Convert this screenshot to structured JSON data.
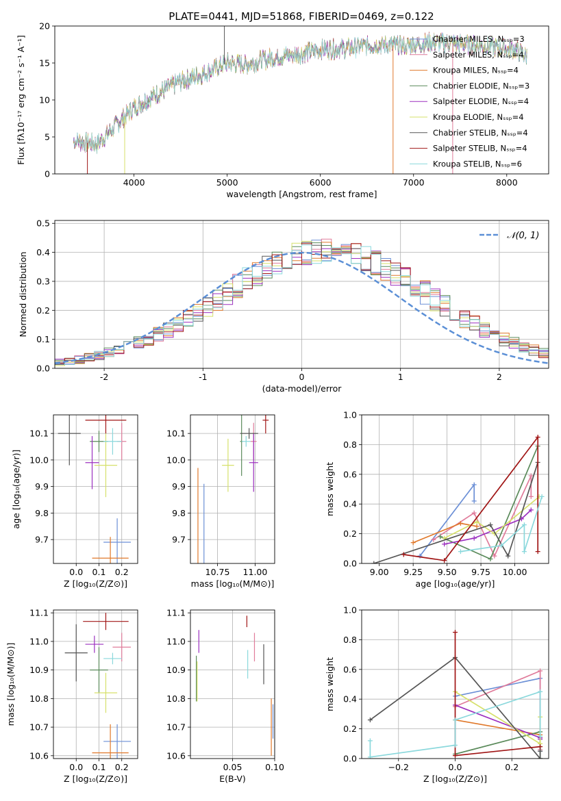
{
  "figure_title": "PLATE=0441, MJD=51868, FIBERID=0469, z=0.122",
  "colors": {
    "chabrier_miles": "#6b8fd6",
    "salpeter_miles": "#e07b9a",
    "kroupa_miles": "#e0782a",
    "chabrier_elodie": "#5a8a5a",
    "salpeter_elodie": "#9b2fbf",
    "kroupa_elodie": "#d6e06a",
    "chabrier_stelib": "#555555",
    "salpeter_stelib": "#a01515",
    "kroupa_stelib": "#8ad8dc",
    "normal_curve": "#5b8fd6"
  },
  "chart_data": [
    {
      "type": "line",
      "id": "spectrum",
      "xlabel": "wavelength [Angstrom, rest frame]",
      "ylabel": "Flux [fλ10⁻¹⁷ erg cm⁻² s⁻¹ A⁻¹]",
      "xlim": [
        3150,
        8450
      ],
      "ylim": [
        0,
        20
      ],
      "xticks": [
        4000,
        5000,
        6000,
        7000,
        8000
      ],
      "yticks": [
        0,
        5,
        10,
        15,
        20
      ],
      "grid": false,
      "legend_position": "top-right",
      "legend": [
        {
          "label": "Chabrier MILES, N_SSP=3",
          "color_key": "chabrier_miles"
        },
        {
          "label": "Salpeter MILES, N_SSP=4",
          "color_key": "salpeter_miles"
        },
        {
          "label": "Kroupa MILES, N_SSP=4",
          "color_key": "kroupa_miles"
        },
        {
          "label": "Chabrier ELODIE, N_SSP=3",
          "color_key": "chabrier_elodie"
        },
        {
          "label": "Salpeter ELODIE, N_SSP=4",
          "color_key": "salpeter_elodie"
        },
        {
          "label": "Kroupa ELODIE, N_SSP=4",
          "color_key": "kroupa_elodie"
        },
        {
          "label": "Chabrier STELIB, N_SSP=4",
          "color_key": "chabrier_stelib"
        },
        {
          "label": "Salpeter STELIB, N_SSP=4",
          "color_key": "salpeter_stelib"
        },
        {
          "label": "Kroupa STELIB, N_SSP=6",
          "color_key": "kroupa_stelib"
        }
      ],
      "continuum": {
        "x": [
          3350,
          3600,
          3800,
          4000,
          4200,
          4500,
          4800,
          5000,
          5200,
          5500,
          5800,
          6000,
          6300,
          6600,
          6900,
          7200,
          7500,
          7800,
          8100,
          8200
        ],
        "y": [
          4.5,
          4.0,
          6.5,
          9.0,
          10.5,
          12.5,
          13.8,
          15.0,
          14.8,
          15.8,
          16.3,
          16.8,
          17.0,
          17.5,
          17.3,
          17.8,
          17.6,
          17.3,
          16.8,
          16.0
        ]
      },
      "data_x_range": [
        3350,
        8220
      ],
      "spikes": [
        {
          "x": 4970,
          "y": 20,
          "series": "chabrier_stelib"
        },
        {
          "x": 7420,
          "y": 0,
          "series": "salpeter_miles"
        },
        {
          "x": 6780,
          "y": 0,
          "series": "kroupa_miles"
        },
        {
          "x": 3900,
          "y": 0,
          "series": "kroupa_elodie"
        },
        {
          "x": 3500,
          "y": 0,
          "series": "salpeter_stelib"
        }
      ]
    },
    {
      "type": "histogram",
      "id": "residuals",
      "xlabel": "(data-model)/error",
      "ylabel": "Normed distribution",
      "xlim": [
        -2.5,
        2.5
      ],
      "ylim": [
        0,
        0.51
      ],
      "xticks": [
        -2,
        -1,
        0,
        1,
        2
      ],
      "yticks": [
        0.0,
        0.1,
        0.2,
        0.3,
        0.4,
        0.5
      ],
      "grid": true,
      "legend_position": "top-right",
      "legend": [
        {
          "label": "𝒩(0, 1)",
          "color_key": "normal_curve"
        }
      ],
      "bin_width": 0.1,
      "bin_start": -2.5,
      "mean_density": [
        0.022,
        0.025,
        0.03,
        0.038,
        0.045,
        0.054,
        0.063,
        0.075,
        0.088,
        0.1,
        0.116,
        0.133,
        0.152,
        0.172,
        0.194,
        0.216,
        0.238,
        0.261,
        0.284,
        0.306,
        0.326,
        0.345,
        0.362,
        0.378,
        0.39,
        0.398,
        0.402,
        0.404,
        0.402,
        0.398,
        0.39,
        0.378,
        0.362,
        0.345,
        0.326,
        0.306,
        0.284,
        0.261,
        0.238,
        0.216,
        0.194,
        0.172,
        0.152,
        0.133,
        0.116,
        0.1,
        0.088,
        0.075,
        0.063,
        0.054
      ]
    },
    {
      "type": "scatter",
      "id": "z-vs-age",
      "xlabel": "Z [log₁₀(Z/Z⊙)]",
      "ylabel": "age  [log₁₀(age/yr)]",
      "xlim": [
        -0.1,
        0.27
      ],
      "ylim": [
        9.61,
        10.17
      ],
      "xticks": [
        0.0,
        0.1,
        0.2
      ],
      "xtick_labels": [
        "0.0",
        "0.1",
        "0.2"
      ],
      "yticks": [
        9.7,
        9.8,
        9.9,
        10.0,
        10.1
      ],
      "grid": true,
      "points": [
        {
          "s": "chabrier_miles",
          "x": 0.18,
          "y": 9.69,
          "xerr": 0.06,
          "yerr": 0.09
        },
        {
          "s": "salpeter_miles",
          "x": 0.2,
          "y": 10.07,
          "xerr": 0.02,
          "yerr": 0.07
        },
        {
          "s": "kroupa_miles",
          "x": 0.15,
          "y": 9.63,
          "xerr": 0.08,
          "yerr": 0.08
        },
        {
          "s": "chabrier_elodie",
          "x": 0.1,
          "y": 10.07,
          "xerr": 0.04,
          "yerr": 0.04
        },
        {
          "s": "salpeter_elodie",
          "x": 0.07,
          "y": 9.99,
          "xerr": 0.03,
          "yerr": 0.1
        },
        {
          "s": "kroupa_elodie",
          "x": 0.13,
          "y": 9.98,
          "xerr": 0.05,
          "yerr": 0.12
        },
        {
          "s": "chabrier_stelib",
          "x": -0.03,
          "y": 10.1,
          "xerr": 0.05,
          "yerr": 0.12
        },
        {
          "s": "salpeter_stelib",
          "x": 0.13,
          "y": 10.15,
          "xerr": 0.09,
          "yerr": 0.05
        },
        {
          "s": "kroupa_stelib",
          "x": 0.16,
          "y": 10.07,
          "xerr": 0.04,
          "yerr": 0.05
        }
      ]
    },
    {
      "type": "scatter",
      "id": "mass-vs-age",
      "xlabel": "mass [log₁₀(M/M⊙)]",
      "ylabel": "",
      "xlim": [
        10.57,
        11.13
      ],
      "ylim": [
        9.61,
        10.17
      ],
      "xticks": [
        10.75,
        11.0
      ],
      "xtick_labels": [
        "10.75",
        "11.00"
      ],
      "yticks": [
        9.7,
        9.8,
        9.9,
        10.0,
        10.1
      ],
      "grid": true,
      "points": [
        {
          "s": "chabrier_miles",
          "x": 10.66,
          "y": 9.69,
          "xerr": 0.0,
          "yerr": 0.22
        },
        {
          "s": "salpeter_miles",
          "x": 10.99,
          "y": 10.07,
          "xerr": 0.02,
          "yerr": 0.07
        },
        {
          "s": "kroupa_miles",
          "x": 10.62,
          "y": 9.63,
          "xerr": 0.0,
          "yerr": 0.34
        },
        {
          "s": "chabrier_elodie",
          "x": 10.91,
          "y": 10.07,
          "xerr": 0.01,
          "yerr": 0.13
        },
        {
          "s": "salpeter_elodie",
          "x": 10.99,
          "y": 9.99,
          "xerr": 0.03,
          "yerr": 0.11
        },
        {
          "s": "kroupa_elodie",
          "x": 10.82,
          "y": 9.98,
          "xerr": 0.04,
          "yerr": 0.1
        },
        {
          "s": "chabrier_stelib",
          "x": 10.96,
          "y": 10.1,
          "xerr": 0.06,
          "yerr": 0.02
        },
        {
          "s": "salpeter_stelib",
          "x": 11.07,
          "y": 10.15,
          "xerr": 0.02,
          "yerr": 0.05
        },
        {
          "s": "kroupa_stelib",
          "x": 10.94,
          "y": 10.07,
          "xerr": 0.03,
          "yerr": 0.02
        }
      ]
    },
    {
      "type": "line",
      "id": "age-vs-weight",
      "xlabel": "age  [log₁₀(age/yr)]",
      "ylabel": "mass weight",
      "xlim": [
        8.87,
        10.25
      ],
      "ylim": [
        0,
        1.0
      ],
      "xticks": [
        9.0,
        9.25,
        9.5,
        9.75,
        10.0
      ],
      "xtick_labels": [
        "9.00",
        "9.25",
        "9.50",
        "9.75",
        "10.00"
      ],
      "yticks": [
        0.0,
        0.2,
        0.4,
        0.6,
        0.8,
        1.0
      ],
      "grid": true,
      "series": [
        {
          "s": "chabrier_miles",
          "x": [
            9.3,
            9.7,
            9.7
          ],
          "y": [
            0.05,
            0.53,
            0.42
          ]
        },
        {
          "s": "salpeter_miles",
          "x": [
            9.4,
            9.7,
            9.85,
            10.12,
            10.12
          ],
          "y": [
            0.16,
            0.34,
            0.05,
            0.59,
            0.45
          ]
        },
        {
          "s": "kroupa_miles",
          "x": [
            9.25,
            9.6,
            9.72
          ],
          "y": [
            0.14,
            0.27,
            0.25
          ]
        },
        {
          "s": "chabrier_elodie",
          "x": [
            9.45,
            9.82,
            10.17
          ],
          "y": [
            0.18,
            0.03,
            0.79
          ]
        },
        {
          "s": "salpeter_elodie",
          "x": [
            9.48,
            9.7,
            10.05,
            10.12
          ],
          "y": [
            0.13,
            0.17,
            0.3,
            0.36
          ]
        },
        {
          "s": "kroupa_elodie",
          "x": [
            9.48,
            9.72,
            9.85,
            10.18
          ],
          "y": [
            0.17,
            0.28,
            0.2,
            0.45
          ]
        },
        {
          "s": "chabrier_stelib",
          "x": [
            8.96,
            9.82,
            9.95,
            10.17
          ],
          "y": [
            0.0,
            0.26,
            0.05,
            0.68
          ]
        },
        {
          "s": "salpeter_stelib",
          "x": [
            9.18,
            9.48,
            10.17,
            10.17
          ],
          "y": [
            0.06,
            0.02,
            0.85,
            0.08
          ]
        },
        {
          "s": "kroupa_stelib",
          "x": [
            9.6,
            9.9,
            10.07,
            10.07,
            10.2
          ],
          "y": [
            0.08,
            0.12,
            0.26,
            0.08,
            0.45
          ]
        }
      ]
    },
    {
      "type": "scatter",
      "id": "z-vs-mass",
      "xlabel": "Z [log₁₀(Z/Z⊙)]",
      "ylabel": "mass [log₁₀(M/M⊙)]",
      "xlim": [
        -0.1,
        0.27
      ],
      "ylim": [
        10.59,
        11.11
      ],
      "xticks": [
        0.0,
        0.1,
        0.2
      ],
      "xtick_labels": [
        "0.0",
        "0.1",
        "0.2"
      ],
      "yticks": [
        10.6,
        10.7,
        10.8,
        10.9,
        11.0,
        11.1
      ],
      "grid": true,
      "points": [
        {
          "s": "chabrier_miles",
          "x": 0.18,
          "y": 10.65,
          "xerr": 0.06,
          "yerr": 0.06
        },
        {
          "s": "salpeter_miles",
          "x": 0.2,
          "y": 10.98,
          "xerr": 0.04,
          "yerr": 0.05
        },
        {
          "s": "kroupa_miles",
          "x": 0.15,
          "y": 10.61,
          "xerr": 0.08,
          "yerr": 0.1
        },
        {
          "s": "chabrier_elodie",
          "x": 0.1,
          "y": 10.9,
          "xerr": 0.04,
          "yerr": 0.08
        },
        {
          "s": "salpeter_elodie",
          "x": 0.08,
          "y": 10.99,
          "xerr": 0.04,
          "yerr": 0.03
        },
        {
          "s": "kroupa_elodie",
          "x": 0.13,
          "y": 10.82,
          "xerr": 0.05,
          "yerr": 0.07
        },
        {
          "s": "chabrier_stelib",
          "x": 0.0,
          "y": 10.96,
          "xerr": 0.05,
          "yerr": 0.1
        },
        {
          "s": "salpeter_stelib",
          "x": 0.13,
          "y": 11.07,
          "xerr": 0.1,
          "yerr": 0.03
        },
        {
          "s": "kroupa_stelib",
          "x": 0.16,
          "y": 10.94,
          "xerr": 0.04,
          "yerr": 0.02
        }
      ]
    },
    {
      "type": "scatter",
      "id": "ebv-vs-mass",
      "xlabel": "E(B-V)",
      "ylabel": "",
      "xlim": [
        0.0,
        0.1
      ],
      "ylim": [
        10.59,
        11.11
      ],
      "xticks": [
        0.05,
        0.1
      ],
      "xtick_labels": [
        "0.05",
        "0.10"
      ],
      "yticks": [
        10.6,
        10.7,
        10.8,
        10.9,
        11.0,
        11.1
      ],
      "grid": true,
      "points": [
        {
          "s": "chabrier_miles",
          "x": 0.098,
          "y": 10.72,
          "xerr": 0,
          "yerr": 0.06
        },
        {
          "s": "salpeter_miles",
          "x": 0.076,
          "y": 10.98,
          "xerr": 0,
          "yerr": 0.05
        },
        {
          "s": "kroupa_miles",
          "x": 0.096,
          "y": 10.7,
          "xerr": 0,
          "yerr": 0.1
        },
        {
          "s": "chabrier_elodie",
          "x": 0.007,
          "y": 10.87,
          "xerr": 0,
          "yerr": 0.08
        },
        {
          "s": "salpeter_elodie",
          "x": 0.01,
          "y": 11.0,
          "xerr": 0,
          "yerr": 0.04
        },
        {
          "s": "kroupa_elodie",
          "x": 0.008,
          "y": 10.86,
          "xerr": 0,
          "yerr": 0.07
        },
        {
          "s": "chabrier_stelib",
          "x": 0.087,
          "y": 10.92,
          "xerr": 0,
          "yerr": 0.07
        },
        {
          "s": "salpeter_stelib",
          "x": 0.067,
          "y": 11.07,
          "xerr": 0,
          "yerr": 0.02
        },
        {
          "s": "kroupa_stelib",
          "x": 0.068,
          "y": 10.92,
          "xerr": 0,
          "yerr": 0.05
        }
      ]
    },
    {
      "type": "line",
      "id": "z-vs-weight",
      "xlabel": "Z [log₁₀(Z/Z⊙)]",
      "ylabel": "mass weight",
      "xlim": [
        -0.33,
        0.33
      ],
      "ylim": [
        0,
        1.0
      ],
      "xticks": [
        -0.2,
        0.0,
        0.2
      ],
      "xtick_labels": [
        "−0.2",
        "0.0",
        "0.2"
      ],
      "yticks": [
        0.0,
        0.2,
        0.4,
        0.6,
        0.8,
        1.0
      ],
      "grid": true,
      "series": [
        {
          "s": "chabrier_miles",
          "x": [
            0.0,
            0.3,
            0.3
          ],
          "y": [
            0.42,
            0.54,
            0.05
          ]
        },
        {
          "s": "salpeter_miles",
          "x": [
            0.0,
            0.3,
            0.3
          ],
          "y": [
            0.35,
            0.59,
            0.06
          ]
        },
        {
          "s": "kroupa_miles",
          "x": [
            0.0,
            0.3,
            0.3
          ],
          "y": [
            0.26,
            0.16,
            0.14
          ]
        },
        {
          "s": "chabrier_elodie",
          "x": [
            0.0,
            0.3,
            0.3
          ],
          "y": [
            0.03,
            0.18,
            0.0
          ]
        },
        {
          "s": "salpeter_elodie",
          "x": [
            0.0,
            0.3,
            0.3
          ],
          "y": [
            0.36,
            0.14,
            0.13
          ]
        },
        {
          "s": "kroupa_elodie",
          "x": [
            0.0,
            0.3,
            0.3
          ],
          "y": [
            0.45,
            0.1,
            0.28
          ]
        },
        {
          "s": "chabrier_stelib",
          "x": [
            -0.3,
            0.0,
            0.3,
            0.3
          ],
          "y": [
            0.26,
            0.68,
            0.0,
            0.05
          ]
        },
        {
          "s": "salpeter_stelib",
          "x": [
            0.0,
            0.0,
            0.3
          ],
          "y": [
            0.85,
            0.02,
            0.08
          ]
        },
        {
          "s": "kroupa_stelib",
          "x": [
            -0.3,
            -0.3,
            0.0,
            0.0,
            0.3,
            0.3
          ],
          "y": [
            0.12,
            0.01,
            0.09,
            0.26,
            0.45,
            0.15
          ]
        }
      ]
    }
  ]
}
